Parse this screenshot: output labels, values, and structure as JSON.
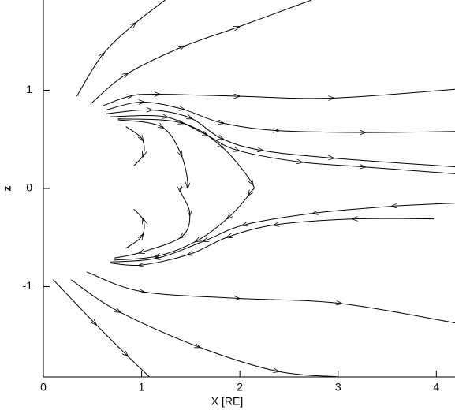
{
  "chart_data": {
    "type": "streamline",
    "x_label": "X [RE]",
    "y_label": "z",
    "color": "#000000",
    "xlim": [
      0,
      4.19
    ],
    "ylim": [
      -1.92,
      1.92
    ],
    "xticks": [
      0,
      1,
      2,
      3,
      4
    ],
    "yticks": [
      -1,
      0,
      1
    ],
    "series": [
      {
        "x": [
          0.34,
          0.6,
          0.92,
          1.24
        ],
        "values": [
          0.94,
          1.36,
          1.67,
          1.92
        ]
      },
      {
        "x": [
          0.48,
          0.84,
          1.41,
          1.97,
          2.73
        ],
        "values": [
          0.86,
          1.16,
          1.44,
          1.64,
          1.92
        ]
      },
      {
        "x": [
          0.6,
          0.88,
          1.16,
          1.97,
          2.93,
          4.19
        ],
        "values": [
          0.84,
          0.94,
          0.96,
          0.94,
          0.92,
          1.01
        ]
      },
      {
        "x": [
          0.64,
          1.0,
          1.41,
          1.81,
          2.37,
          3.25,
          4.19
        ],
        "values": [
          0.8,
          0.88,
          0.81,
          0.67,
          0.59,
          0.57,
          0.58
        ]
      },
      {
        "x": [
          0.64,
          1.08,
          1.49,
          1.81,
          2.21,
          2.93,
          4.19
        ],
        "values": [
          0.76,
          0.8,
          0.72,
          0.51,
          0.39,
          0.31,
          0.22
        ]
      },
      {
        "x": [
          0.68,
          1.24,
          1.65,
          1.97,
          2.61,
          3.25,
          4.19
        ],
        "values": [
          0.73,
          0.73,
          0.55,
          0.39,
          0.27,
          0.22,
          0.15
        ]
      },
      {
        "x": [
          0.76,
          1.4,
          1.81,
          2.12,
          2.1,
          1.89,
          1.57,
          1.16,
          0.72
        ],
        "values": [
          0.71,
          0.67,
          0.43,
          0.06,
          -0.05,
          -0.29,
          -0.53,
          -0.69,
          -0.73
        ]
      },
      {
        "x": [
          0.76,
          1.2,
          1.4,
          1.47,
          1.39,
          1.49,
          1.41,
          1.0,
          0.72
        ],
        "values": [
          0.7,
          0.63,
          0.35,
          0.03,
          -0.01,
          -0.25,
          -0.49,
          -0.65,
          -0.71
        ]
      },
      {
        "x": [
          0.84,
          1.0,
          1.02,
          0.92
        ],
        "values": [
          0.63,
          0.51,
          0.35,
          0.23
        ]
      },
      {
        "x": [
          0.84,
          1.0,
          1.02,
          0.92
        ],
        "values": [
          -0.61,
          -0.49,
          -0.33,
          -0.21
        ]
      },
      {
        "x": [
          4.19,
          3.57,
          2.77,
          2.05,
          1.65,
          1.16,
          0.68
        ],
        "values": [
          -0.15,
          -0.18,
          -0.25,
          -0.37,
          -0.53,
          -0.71,
          -0.75
        ]
      },
      {
        "x": [
          3.98,
          3.17,
          2.37,
          1.89,
          1.49,
          1.0,
          0.68
        ],
        "values": [
          -0.31,
          -0.31,
          -0.37,
          -0.49,
          -0.67,
          -0.78,
          -0.76
        ]
      },
      {
        "x": [
          0.44,
          1.0,
          1.97,
          3.01,
          4.19
        ],
        "values": [
          -0.85,
          -1.05,
          -1.12,
          -1.17,
          -1.37
        ]
      },
      {
        "x": [
          0.28,
          0.76,
          1.57,
          2.37,
          3.01
        ],
        "values": [
          -0.93,
          -1.25,
          -1.61,
          -1.86,
          -1.92
        ]
      },
      {
        "x": [
          0.1,
          0.52,
          0.84,
          1.08
        ],
        "values": [
          -0.93,
          -1.37,
          -1.69,
          -1.92
        ]
      }
    ]
  }
}
